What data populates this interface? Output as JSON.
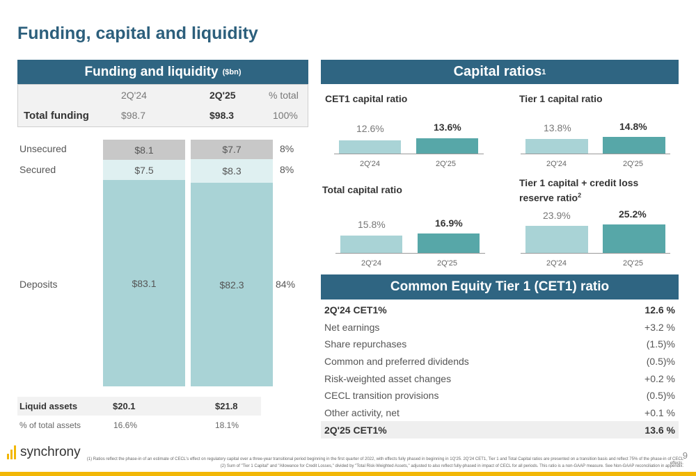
{
  "page": {
    "title": "Funding, capital and liquidity",
    "page_number": "9",
    "brand": "synchrony"
  },
  "funding": {
    "header": "Funding and liquidity",
    "header_unit": "($bn)",
    "cols": [
      "2Q'24",
      "2Q'25",
      "% total"
    ],
    "total_label": "Total funding",
    "total_values": [
      "$98.7",
      "$98.3",
      "100%"
    ],
    "rows": [
      {
        "label": "Unsecured",
        "v24": "$8.1",
        "v25": "$7.7",
        "pct": "8%"
      },
      {
        "label": "Secured",
        "v24": "$7.5",
        "v25": "$8.3",
        "pct": "8%"
      },
      {
        "label": "Deposits",
        "v24": "$83.1",
        "v25": "$82.3",
        "pct": "84%"
      }
    ],
    "liquid_label": "Liquid assets",
    "liquid_values": [
      "$20.1",
      "$21.8"
    ],
    "pct_assets_label": "% of total assets",
    "pct_assets_values": [
      "16.6%",
      "18.1%"
    ]
  },
  "capital": {
    "header": "Capital ratios",
    "header_sup": "1",
    "charts": [
      {
        "title": "CET1 capital ratio",
        "v24": "12.6%",
        "v25": "13.6%"
      },
      {
        "title": "Tier 1 capital ratio",
        "v24": "13.8%",
        "v25": "14.8%"
      },
      {
        "title": "Total capital ratio",
        "v24": "15.8%",
        "v25": "16.9%"
      },
      {
        "title": "Tier 1 capital + credit loss",
        "title2": "reserve ratio",
        "sup": "2",
        "v24": "23.9%",
        "v25": "25.2%"
      }
    ],
    "x_labels": [
      "2Q'24",
      "2Q'25"
    ]
  },
  "cet1": {
    "header": "Common Equity Tier 1 (CET1) ratio",
    "rows": [
      {
        "label": "2Q'24 CET1%",
        "value": "12.6 %",
        "highlight": false,
        "bold": true
      },
      {
        "label": "Net earnings",
        "value": "+3.2 %"
      },
      {
        "label": "Share repurchases",
        "value": "(1.5)%"
      },
      {
        "label": "Common and preferred dividends",
        "value": "(0.5)%"
      },
      {
        "label": "Risk-weighted asset changes",
        "value": "+0.2 %"
      },
      {
        "label": "CECL transition provisions",
        "value": "(0.5)%"
      },
      {
        "label": "Other activity, net",
        "value": "+0.1 %"
      },
      {
        "label": "2Q'25 CET1%",
        "value": "13.6 %",
        "highlight": true,
        "bold": true
      }
    ]
  },
  "footnotes": [
    "(1) Ratios reflect the phase-in of an estimate of CECL's effect on regulatory capital over a three-year transitional period beginning in the first quarter of 2022, with effects fully phased in beginning in 1Q'25. 2Q'24 CET1, Tier 1 and Total Capital ratios are presented on a transition basis and reflect 75% of the phase-in of CECL effects.",
    "(2) Sum of \"Tier 1 Capital\" and \"Allowance for Credit Losses,\" divided by \"Total Risk-Weighted Assets,\" adjusted to also reflect fully-phased in impact of CECL for all periods. This ratio is a non-GAAP measure. See Non-GAAP reconciliation in appendix."
  ],
  "colors": {
    "navy": "#2f6582",
    "teal_light": "#a9d3d6",
    "teal_dark": "#57a7a8",
    "gold": "#f2b705"
  }
}
